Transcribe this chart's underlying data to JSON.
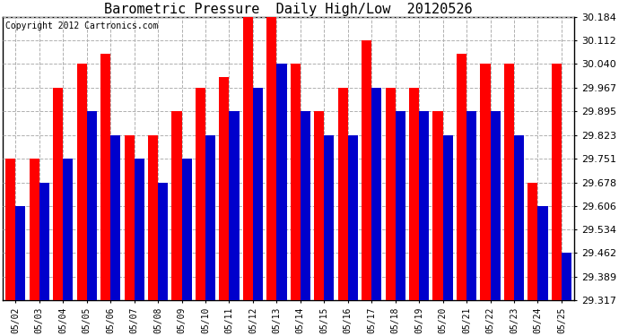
{
  "title": "Barometric Pressure  Daily High/Low  20120526",
  "copyright": "Copyright 2012 Cartronics.com",
  "dates": [
    "05/02",
    "05/03",
    "05/04",
    "05/05",
    "05/06",
    "05/07",
    "05/08",
    "05/09",
    "05/10",
    "05/11",
    "05/12",
    "05/13",
    "05/14",
    "05/15",
    "05/16",
    "05/17",
    "05/18",
    "05/19",
    "05/20",
    "05/21",
    "05/22",
    "05/23",
    "05/24",
    "05/25"
  ],
  "highs": [
    29.751,
    29.751,
    29.967,
    30.04,
    30.072,
    29.823,
    29.823,
    29.895,
    29.967,
    30.0,
    30.184,
    30.184,
    30.04,
    29.895,
    29.967,
    30.112,
    29.967,
    29.967,
    29.895,
    30.072,
    30.04,
    30.04,
    29.678,
    30.04
  ],
  "lows": [
    29.606,
    29.678,
    29.751,
    29.895,
    29.823,
    29.751,
    29.678,
    29.751,
    29.823,
    29.895,
    29.967,
    30.04,
    29.895,
    29.823,
    29.823,
    29.967,
    29.895,
    29.895,
    29.823,
    29.895,
    29.895,
    29.823,
    29.606,
    29.462
  ],
  "high_color": "#ff0000",
  "low_color": "#0000cc",
  "bg_color": "#ffffff",
  "plot_bg_color": "#ffffff",
  "grid_color": "#b0b0b0",
  "yticks": [
    29.317,
    29.389,
    29.462,
    29.534,
    29.606,
    29.678,
    29.751,
    29.823,
    29.895,
    29.967,
    30.04,
    30.112,
    30.184
  ],
  "ymin": 29.317,
  "ymax": 30.184,
  "title_fontsize": 11,
  "copyright_fontsize": 7,
  "tick_fontsize": 8,
  "xtick_fontsize": 7
}
